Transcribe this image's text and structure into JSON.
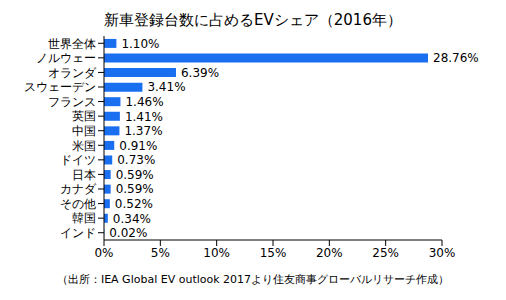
{
  "chart_data": {
    "type": "bar",
    "orientation": "horizontal",
    "title": "新車登録台数に占めるEVシェア（2016年）",
    "annotation": "（出所：IEA Global EV outlook 2017より住友商事グローバルリサーチ作成）",
    "categories": [
      "世界全体",
      "ノルウェー",
      "オランダ",
      "スウェーデン",
      "フランス",
      "英国",
      "中国",
      "米国",
      "ドイツ",
      "日本",
      "カナダ",
      "その他",
      "韓国",
      "インド"
    ],
    "values": [
      1.1,
      28.76,
      6.39,
      3.41,
      1.46,
      1.41,
      1.37,
      0.91,
      0.73,
      0.59,
      0.59,
      0.52,
      0.34,
      0.02
    ],
    "value_labels": [
      "1.10%",
      "28.76%",
      "6.39%",
      "3.41%",
      "1.46%",
      "1.41%",
      "1.37%",
      "0.91%",
      "0.73%",
      "0.59%",
      "0.59%",
      "0.52%",
      "0.34%",
      "0.02%"
    ],
    "color": "#1a6ff0",
    "xlim": [
      0,
      30
    ],
    "xticks": [
      {
        "value": 0,
        "label": "0%"
      },
      {
        "value": 5,
        "label": "5%"
      },
      {
        "value": 10,
        "label": "10%"
      },
      {
        "value": 15,
        "label": "15%"
      },
      {
        "value": 20,
        "label": "20%"
      },
      {
        "value": 25,
        "label": "25%"
      },
      {
        "value": 30,
        "label": "30%"
      }
    ],
    "data_labels": true,
    "grid": false
  }
}
